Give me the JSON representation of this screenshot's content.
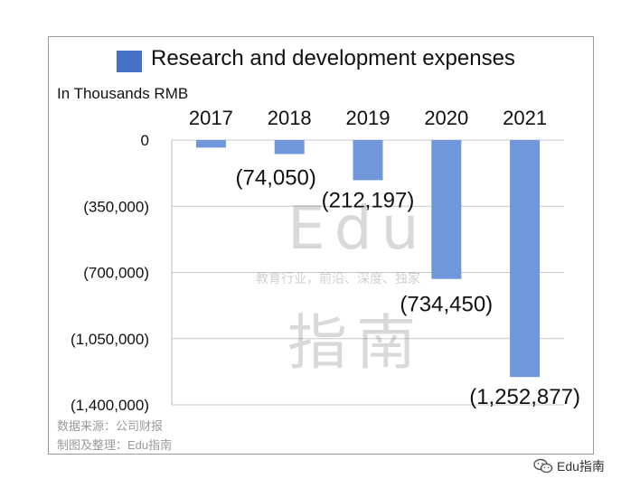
{
  "chart_data": {
    "type": "bar",
    "legend": "Research and development expenses",
    "unit_label": "In Thousands RMB",
    "categories": [
      "2017",
      "2018",
      "2019",
      "2020",
      "2021"
    ],
    "series": [
      {
        "name": "Research and development expenses",
        "values": [
          -40000,
          -74050,
          -212197,
          -734450,
          -1252877
        ]
      }
    ],
    "data_labels": [
      "",
      "(74,050)",
      "(212,197)",
      "(734,450)",
      "(1,252,877)"
    ],
    "y_ticks": [
      0,
      -350000,
      -700000,
      -1050000,
      -1400000
    ],
    "y_tick_labels": [
      "0",
      "(350,000)",
      "(700,000)",
      "(1,050,000)",
      "(1,400,000)"
    ],
    "ylim": [
      -1400000,
      0
    ],
    "grid": true,
    "legend_position": "top",
    "bar_color": "#7097d9",
    "legend_color": "#4472c4"
  },
  "source": {
    "line1": "数据来源：公司财报",
    "line2": "制图及整理：Edu指南"
  },
  "watermark": {
    "line1": "Edu",
    "line2": "指南",
    "slogan": "教育行业，前沿、深度、独家"
  },
  "footer": {
    "account": "Edu指南",
    "icon": "wechat-icon"
  }
}
